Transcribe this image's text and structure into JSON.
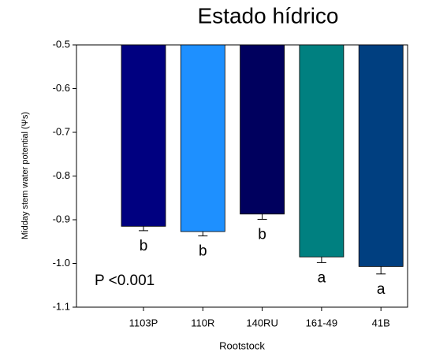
{
  "chart_data": {
    "type": "bar",
    "title": "Estado hídrico",
    "xlabel": "Rootstock",
    "ylabel": "Midday stem water potential (Ψs)",
    "categories": [
      "1103P",
      "110R",
      "140RU",
      "161-49",
      "41B"
    ],
    "values": [
      -0.915,
      -0.927,
      -0.887,
      -0.985,
      -1.007
    ],
    "errors": [
      0.01,
      0.01,
      0.012,
      0.013,
      0.017
    ],
    "colors": [
      "#000080",
      "#1e90ff",
      "#00005e",
      "#008080",
      "#003f80"
    ],
    "letters": [
      "b",
      "b",
      "b",
      "a",
      "a"
    ],
    "annotation": "P <0.001",
    "ylim": [
      -1.1,
      -0.5
    ],
    "yticks": [
      -0.5,
      -0.6,
      -0.7,
      -0.8,
      -0.9,
      {
        "value": -1,
        "label": "-1.0"
      },
      -1.1
    ],
    "grid": false
  }
}
